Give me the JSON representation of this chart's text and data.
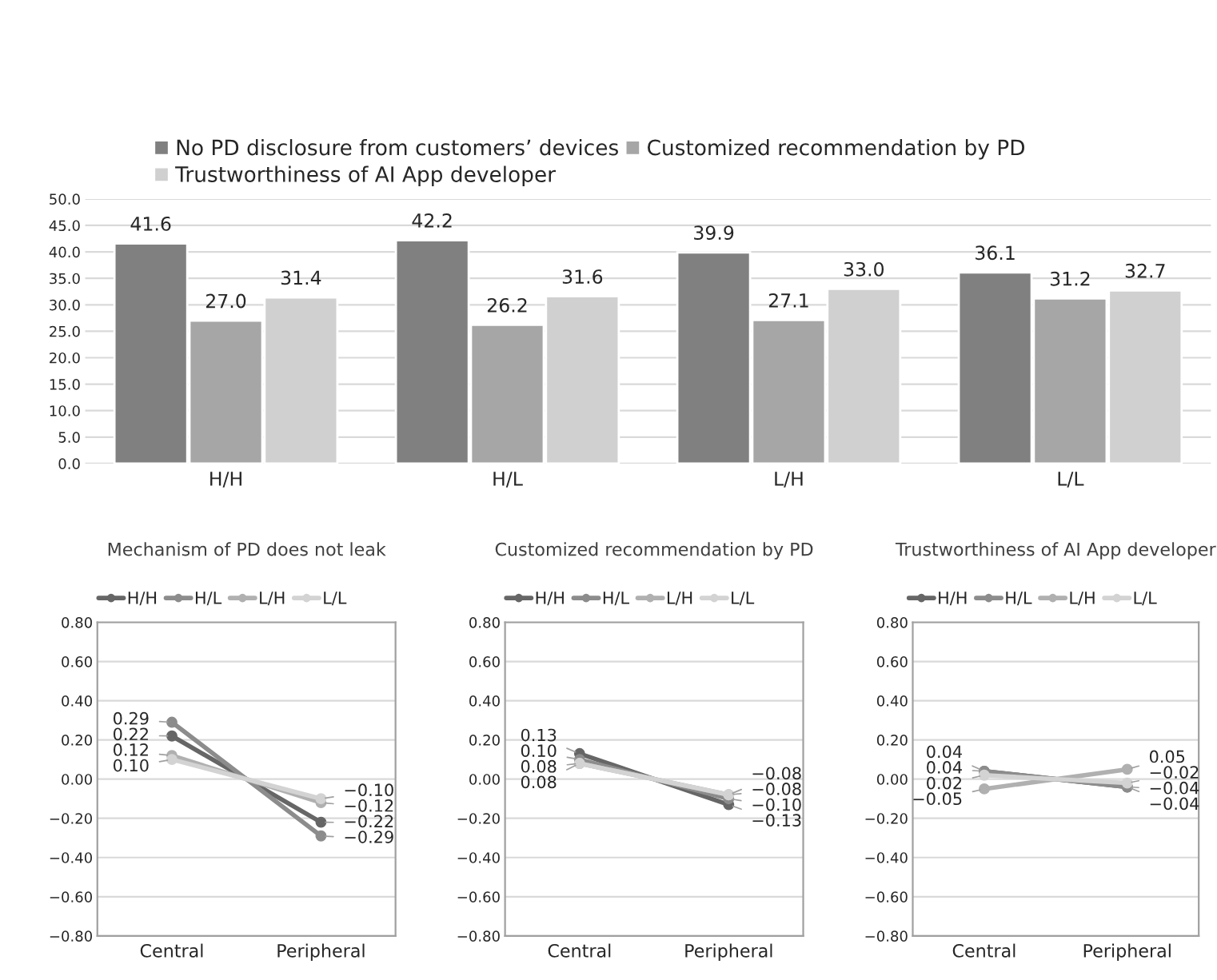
{
  "chart_data": [
    {
      "type": "bar",
      "categories": [
        "H/H",
        "H/L",
        "L/H",
        "L/L"
      ],
      "series": [
        {
          "name": "No PD disclosure from customers’ devices",
          "color": "#808080",
          "values": [
            41.6,
            42.2,
            39.9,
            36.1
          ],
          "value_labels": [
            "41.6",
            "42.2",
            "39.9",
            "36.1"
          ]
        },
        {
          "name": "Customized recommendation by PD",
          "color": "#a6a6a6",
          "values": [
            27.0,
            26.2,
            27.1,
            31.2
          ],
          "value_labels": [
            "27.0",
            "26.2",
            "27.1",
            "31.2"
          ]
        },
        {
          "name": "Trustworthiness of AI App developer",
          "color": "#d0d0d0",
          "values": [
            31.4,
            31.6,
            33.0,
            32.7
          ],
          "value_labels": [
            "31.4",
            "31.6",
            "33.0",
            "32.7"
          ]
        }
      ],
      "ylim": [
        0,
        50
      ],
      "yticks": [
        {
          "value": 0,
          "label": "0.0"
        },
        {
          "value": 5,
          "label": "5.0"
        },
        {
          "value": 10,
          "label": "10.0"
        },
        {
          "value": 15,
          "label": "15.0"
        },
        {
          "value": 20,
          "label": "20.0"
        },
        {
          "value": 25,
          "label": "25.0"
        },
        {
          "value": 30,
          "label": "30.0"
        },
        {
          "value": 35,
          "label": "35.0"
        },
        {
          "value": 40,
          "label": "40.0"
        },
        {
          "value": 45,
          "label": "45.0"
        },
        {
          "value": 50,
          "label": "50.0"
        }
      ],
      "grid": "y",
      "legend": "top"
    },
    {
      "type": "line",
      "title": "Mechanism of PD does not leak",
      "categories": [
        "Central",
        "Peripheral"
      ],
      "series": [
        {
          "name": "H/H",
          "color": "#666666",
          "values": [
            0.22,
            -0.22
          ],
          "value_labels": [
            "0.22",
            "−0.22"
          ]
        },
        {
          "name": "H/L",
          "color": "#8c8c8c",
          "values": [
            0.29,
            -0.29
          ],
          "value_labels": [
            "0.29",
            "−0.29"
          ]
        },
        {
          "name": "L/H",
          "color": "#b0b0b0",
          "values": [
            0.12,
            -0.12
          ],
          "value_labels": [
            "0.12",
            "−0.12"
          ]
        },
        {
          "name": "L/L",
          "color": "#d3d3d3",
          "values": [
            0.1,
            -0.1
          ],
          "value_labels": [
            "0.10",
            "−0.10"
          ]
        }
      ],
      "ylim": [
        -0.8,
        0.8
      ],
      "yticks": [
        {
          "value": -0.8,
          "label": "−0.80"
        },
        {
          "value": -0.6,
          "label": "−0.60"
        },
        {
          "value": -0.4,
          "label": "−0.40"
        },
        {
          "value": -0.2,
          "label": "−0.20"
        },
        {
          "value": 0,
          "label": "0.00"
        },
        {
          "value": 0.2,
          "label": "0.20"
        },
        {
          "value": 0.4,
          "label": "0.40"
        },
        {
          "value": 0.6,
          "label": "0.60"
        },
        {
          "value": 0.8,
          "label": "0.80"
        }
      ],
      "grid": "y",
      "legend": "top",
      "marker": "circle"
    },
    {
      "type": "line",
      "title": "Customized recommendation by PD",
      "categories": [
        "Central",
        "Peripheral"
      ],
      "series": [
        {
          "name": "H/H",
          "color": "#666666",
          "values": [
            0.13,
            -0.13
          ],
          "value_labels": [
            "0.13",
            "−0.13"
          ]
        },
        {
          "name": "H/L",
          "color": "#8c8c8c",
          "values": [
            0.1,
            -0.1
          ],
          "value_labels": [
            "0.10",
            "−0.10"
          ]
        },
        {
          "name": "L/H",
          "color": "#b0b0b0",
          "values": [
            0.08,
            -0.08
          ],
          "value_labels": [
            "0.08",
            "−0.08"
          ]
        },
        {
          "name": "L/L",
          "color": "#d3d3d3",
          "values": [
            0.08,
            -0.08
          ],
          "value_labels": [
            "0.08",
            "−0.08"
          ]
        }
      ],
      "ylim": [
        -0.8,
        0.8
      ],
      "yticks": [
        {
          "value": -0.8,
          "label": "−0.80"
        },
        {
          "value": -0.6,
          "label": "−0.60"
        },
        {
          "value": -0.4,
          "label": "−0.40"
        },
        {
          "value": -0.2,
          "label": "−0.20"
        },
        {
          "value": 0,
          "label": "0.00"
        },
        {
          "value": 0.2,
          "label": "0.20"
        },
        {
          "value": 0.4,
          "label": "0.40"
        },
        {
          "value": 0.6,
          "label": "0.60"
        },
        {
          "value": 0.8,
          "label": "0.80"
        }
      ],
      "grid": "y",
      "legend": "top",
      "marker": "circle"
    },
    {
      "type": "line",
      "title": "Trustworthiness of AI App developer",
      "categories": [
        "Central",
        "Peripheral"
      ],
      "series": [
        {
          "name": "H/H",
          "color": "#666666",
          "values": [
            0.04,
            -0.04
          ],
          "value_labels": [
            "0.04",
            "−0.04"
          ]
        },
        {
          "name": "H/L",
          "color": "#8c8c8c",
          "values": [
            0.04,
            -0.04
          ],
          "value_labels": [
            "0.04",
            "−0.04"
          ]
        },
        {
          "name": "L/H",
          "color": "#b0b0b0",
          "values": [
            -0.05,
            0.05
          ],
          "value_labels": [
            "−0.05",
            "0.05"
          ]
        },
        {
          "name": "L/L",
          "color": "#d3d3d3",
          "values": [
            0.02,
            -0.02
          ],
          "value_labels": [
            "0.02",
            "−0.02"
          ]
        }
      ],
      "ylim": [
        -0.8,
        0.8
      ],
      "yticks": [
        {
          "value": -0.8,
          "label": "−0.80"
        },
        {
          "value": -0.6,
          "label": "−0.60"
        },
        {
          "value": -0.4,
          "label": "−0.40"
        },
        {
          "value": -0.2,
          "label": "−0.20"
        },
        {
          "value": 0,
          "label": "0.00"
        },
        {
          "value": 0.2,
          "label": "0.20"
        },
        {
          "value": 0.4,
          "label": "0.40"
        },
        {
          "value": 0.6,
          "label": "0.60"
        },
        {
          "value": 0.8,
          "label": "0.80"
        }
      ],
      "grid": "y",
      "legend": "top",
      "marker": "circle"
    }
  ]
}
